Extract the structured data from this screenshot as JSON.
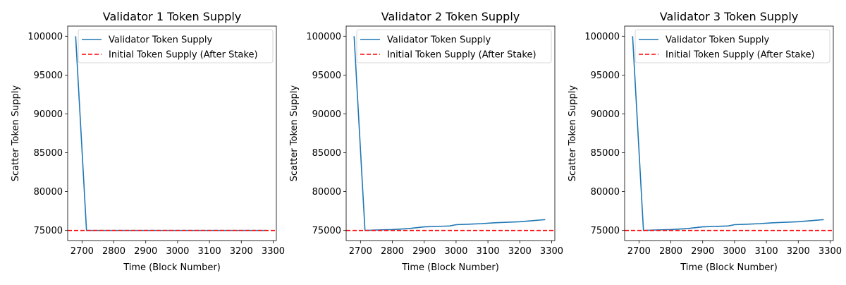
{
  "chart_data": [
    {
      "type": "line",
      "title": "Validator 1 Token Supply",
      "xlabel": "Time (Block Number)",
      "ylabel": "Scatter Token Supply",
      "xlim": [
        2655,
        3310
      ],
      "ylim": [
        73700,
        101300
      ],
      "xticks": [
        2700,
        2800,
        2900,
        3000,
        3100,
        3200,
        3300
      ],
      "yticks": [
        75000,
        80000,
        85000,
        90000,
        95000,
        100000
      ],
      "legend_position": "upper right",
      "grid": false,
      "series": [
        {
          "name": "Validator Token Supply",
          "color": "#1f77b4",
          "style": "solid",
          "x": [
            2680,
            2714,
            3280
          ],
          "y": [
            100000,
            75000,
            75000
          ]
        }
      ],
      "hlines": [
        {
          "name": "Initial Token Supply (After Stake)",
          "y": 75000,
          "color": "#ff0000",
          "style": "dashed"
        }
      ]
    },
    {
      "type": "line",
      "title": "Validator 2 Token Supply",
      "xlabel": "Time (Block Number)",
      "ylabel": "Scatter Token Supply",
      "xlim": [
        2655,
        3310
      ],
      "ylim": [
        73700,
        101300
      ],
      "xticks": [
        2700,
        2800,
        2900,
        3000,
        3100,
        3200,
        3300
      ],
      "yticks": [
        75000,
        80000,
        85000,
        90000,
        95000,
        100000
      ],
      "legend_position": "upper right",
      "grid": false,
      "series": [
        {
          "name": "Validator Token Supply",
          "color": "#1f77b4",
          "style": "solid",
          "x": [
            2680,
            2714,
            2750,
            2800,
            2850,
            2900,
            2940,
            2980,
            3000,
            3040,
            3080,
            3120,
            3160,
            3200,
            3240,
            3280
          ],
          "y": [
            100000,
            75000,
            75050,
            75120,
            75230,
            75460,
            75520,
            75580,
            75740,
            75810,
            75880,
            75990,
            76050,
            76120,
            76260,
            76400
          ]
        }
      ],
      "hlines": [
        {
          "name": "Initial Token Supply (After Stake)",
          "y": 75000,
          "color": "#ff0000",
          "style": "dashed"
        }
      ]
    },
    {
      "type": "line",
      "title": "Validator 3 Token Supply",
      "xlabel": "Time (Block Number)",
      "ylabel": "Scatter Token Supply",
      "xlim": [
        2655,
        3310
      ],
      "ylim": [
        73700,
        101300
      ],
      "xticks": [
        2700,
        2800,
        2900,
        3000,
        3100,
        3200,
        3300
      ],
      "yticks": [
        75000,
        80000,
        85000,
        90000,
        95000,
        100000
      ],
      "legend_position": "upper right",
      "grid": false,
      "series": [
        {
          "name": "Validator Token Supply",
          "color": "#1f77b4",
          "style": "solid",
          "x": [
            2680,
            2714,
            2750,
            2800,
            2850,
            2900,
            2940,
            2980,
            3000,
            3040,
            3080,
            3120,
            3160,
            3200,
            3240,
            3280
          ],
          "y": [
            100000,
            75000,
            75050,
            75120,
            75230,
            75460,
            75520,
            75580,
            75740,
            75810,
            75880,
            75990,
            76050,
            76120,
            76260,
            76400
          ]
        }
      ],
      "hlines": [
        {
          "name": "Initial Token Supply (After Stake)",
          "y": 75000,
          "color": "#ff0000",
          "style": "dashed"
        }
      ]
    }
  ]
}
